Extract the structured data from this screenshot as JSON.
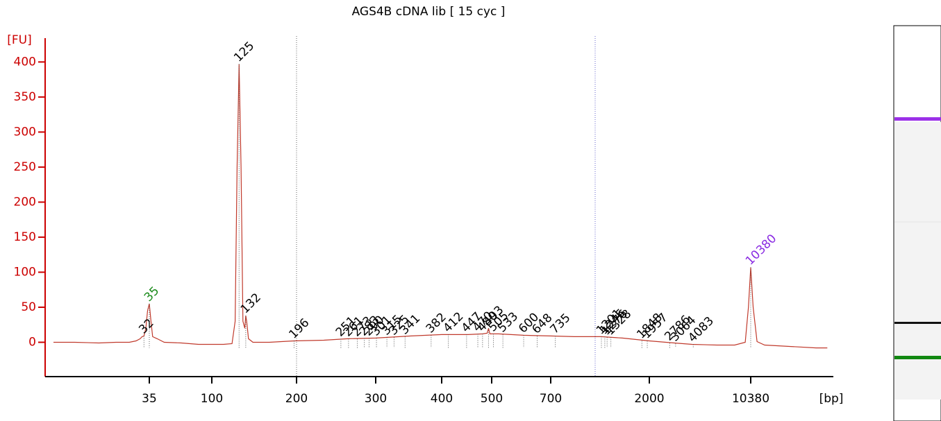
{
  "chart_data": {
    "type": "line",
    "title": "AGS4B cDNA lib  [ 15 cyc ]",
    "y_label": "[FU]",
    "x_label": "[bp]",
    "x_scale": "log",
    "ylim": [
      -49,
      434
    ],
    "yticks": [
      0,
      50,
      100,
      150,
      200,
      250,
      300,
      350,
      400
    ],
    "xticks": [
      35,
      100,
      200,
      300,
      400,
      500,
      700,
      2000,
      10380
    ],
    "axis_color": "#cc0000",
    "trace": {
      "color": "#c0392b",
      "x": [
        7,
        10,
        15,
        20,
        25,
        28,
        30,
        31,
        32,
        33,
        34,
        35,
        36,
        37,
        40,
        45,
        60,
        80,
        100,
        110,
        118,
        121,
        123,
        125,
        127,
        129,
        131,
        132,
        133,
        135,
        140,
        160,
        196,
        230,
        260,
        300,
        350,
        400,
        450,
        480,
        490,
        493,
        496,
        520,
        600,
        700,
        900,
        1200,
        1500,
        2000,
        3000,
        4000,
        6000,
        8000,
        9500,
        10000,
        10380,
        10800,
        11500,
        13000,
        20000,
        30000,
        36000
      ],
      "values": [
        0,
        0,
        -1,
        0,
        0,
        2,
        5,
        8,
        9,
        20,
        45,
        55,
        30,
        8,
        5,
        0,
        -1,
        -3,
        -3,
        -3,
        -2,
        30,
        250,
        397,
        250,
        30,
        20,
        38,
        30,
        5,
        0,
        0,
        2,
        3,
        5,
        6,
        9,
        11,
        11,
        12,
        13,
        20,
        12,
        12,
        10,
        9,
        8,
        8,
        6,
        2,
        -1,
        -3,
        -4,
        -4,
        0,
        50,
        107,
        50,
        1,
        -4,
        -6,
        -8,
        -8
      ]
    },
    "peaks": [
      {
        "bp": 32,
        "fu": 9,
        "color": "#000000"
      },
      {
        "bp": 35,
        "fu": 55,
        "color": "#1a8a1a"
      },
      {
        "bp": 125,
        "fu": 397,
        "color": "#000000"
      },
      {
        "bp": 132,
        "fu": 38,
        "color": "#000000"
      },
      {
        "bp": 196,
        "fu": 2,
        "color": "#000000"
      },
      {
        "bp": 251,
        "fu": 5,
        "color": "#000000"
      },
      {
        "bp": 261,
        "fu": 5,
        "color": "#000000"
      },
      {
        "bp": 273,
        "fu": 5,
        "color": "#000000"
      },
      {
        "bp": 283,
        "fu": 6,
        "color": "#000000"
      },
      {
        "bp": 290,
        "fu": 6,
        "color": "#000000"
      },
      {
        "bp": 301,
        "fu": 6,
        "color": "#000000"
      },
      {
        "bp": 315,
        "fu": 7,
        "color": "#000000"
      },
      {
        "bp": 325,
        "fu": 7,
        "color": "#000000"
      },
      {
        "bp": 341,
        "fu": 8,
        "color": "#000000"
      },
      {
        "bp": 382,
        "fu": 10,
        "color": "#000000"
      },
      {
        "bp": 412,
        "fu": 11,
        "color": "#000000"
      },
      {
        "bp": 447,
        "fu": 11,
        "color": "#000000"
      },
      {
        "bp": 470,
        "fu": 12,
        "color": "#000000"
      },
      {
        "bp": 480,
        "fu": 12,
        "color": "#000000"
      },
      {
        "bp": 493,
        "fu": 20,
        "color": "#000000"
      },
      {
        "bp": 505,
        "fu": 12,
        "color": "#000000"
      },
      {
        "bp": 533,
        "fu": 11,
        "color": "#000000"
      },
      {
        "bp": 600,
        "fu": 10,
        "color": "#000000"
      },
      {
        "bp": 648,
        "fu": 9,
        "color": "#000000"
      },
      {
        "bp": 735,
        "fu": 9,
        "color": "#000000"
      },
      {
        "bp": 1201,
        "fu": 8,
        "color": "#000000"
      },
      {
        "bp": 1245,
        "fu": 8,
        "color": "#000000"
      },
      {
        "bp": 1276,
        "fu": 7,
        "color": "#000000"
      },
      {
        "bp": 1328,
        "fu": 7,
        "color": "#000000"
      },
      {
        "bp": 1848,
        "fu": 2,
        "color": "#000000"
      },
      {
        "bp": 1957,
        "fu": 2,
        "color": "#000000"
      },
      {
        "bp": 2786,
        "fu": -1,
        "color": "#000000"
      },
      {
        "bp": 3064,
        "fu": -2,
        "color": "#000000"
      },
      {
        "bp": 4083,
        "fu": -3,
        "color": "#000000"
      },
      {
        "bp": 10380,
        "fu": 107,
        "color": "#8a2be2"
      }
    ]
  }
}
